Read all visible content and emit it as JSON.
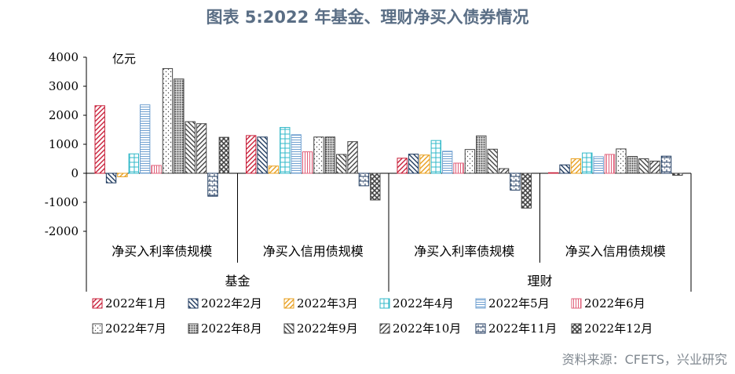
{
  "title": "图表 5:2022 年基金、理财净买入债券情况",
  "source": "资料来源：CFETS，兴业研究",
  "colors": [
    "#c8203a",
    "#1f3a5f",
    "#e8a020",
    "#30b8c8",
    "#70a0d0",
    "#e0607a",
    "#444444",
    "#444444",
    "#444444",
    "#444444",
    "#1f3a5f",
    "#444444"
  ],
  "chart_data": {
    "type": "bar",
    "unit_label": "亿元",
    "ylim": [
      -2000,
      4000
    ],
    "yticks": [
      "4000",
      "3000",
      "2000",
      "1000",
      "0",
      "-1000",
      "-2000"
    ],
    "ytick_values": [
      4000,
      3000,
      2000,
      1000,
      0,
      -1000,
      -2000
    ],
    "categories": [
      "净买入利率债规模",
      "净买入信用债规模",
      "净买入利率债规模",
      "净买入信用债规模"
    ],
    "groups": [
      "基金",
      "理财"
    ],
    "series": [
      {
        "name": "2022年1月",
        "values": [
          2330,
          1300,
          520,
          20
        ]
      },
      {
        "name": "2022年2月",
        "values": [
          -330,
          1250,
          660,
          290
        ]
      },
      {
        "name": "2022年3月",
        "values": [
          -120,
          250,
          630,
          500
        ]
      },
      {
        "name": "2022年4月",
        "values": [
          670,
          1580,
          1130,
          700
        ]
      },
      {
        "name": "2022年5月",
        "values": [
          2360,
          1330,
          760,
          570
        ]
      },
      {
        "name": "2022年6月",
        "values": [
          270,
          740,
          350,
          650
        ]
      },
      {
        "name": "2022年7月",
        "values": [
          3610,
          1250,
          820,
          840
        ]
      },
      {
        "name": "2022年8月",
        "values": [
          3250,
          1250,
          1290,
          580
        ]
      },
      {
        "name": "2022年9月",
        "values": [
          1780,
          650,
          830,
          500
        ]
      },
      {
        "name": "2022年10月",
        "values": [
          1710,
          1090,
          160,
          420
        ]
      },
      {
        "name": "2022年11月",
        "values": [
          -790,
          -430,
          -580,
          590
        ]
      },
      {
        "name": "2022年12月",
        "values": [
          1240,
          -920,
          -1200,
          -70
        ]
      }
    ]
  }
}
